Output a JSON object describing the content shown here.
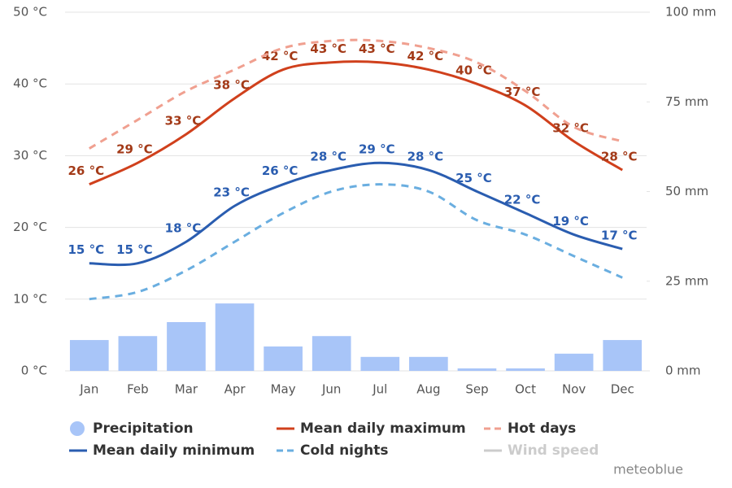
{
  "chart_data": {
    "type": "combo",
    "credit": "meteoblue",
    "categories": [
      "Jan",
      "Feb",
      "Mar",
      "Apr",
      "May",
      "Jun",
      "Jul",
      "Aug",
      "Sep",
      "Oct",
      "Nov",
      "Dec"
    ],
    "ylim": [
      0,
      50
    ],
    "yticks": [
      {
        "value": 0,
        "label": "0 °C"
      },
      {
        "value": 10,
        "label": "10 °C"
      },
      {
        "value": 20,
        "label": "20 °C"
      },
      {
        "value": 30,
        "label": "30 °C"
      },
      {
        "value": 40,
        "label": "40 °C"
      },
      {
        "value": 50,
        "label": "50 °C"
      }
    ],
    "y2lim": [
      0,
      100
    ],
    "y2ticks": [
      {
        "value": 0,
        "label": "0 mm"
      },
      {
        "value": 25,
        "label": "25 mm"
      },
      {
        "value": 50,
        "label": "50 mm"
      },
      {
        "value": 75,
        "label": "75 mm"
      },
      {
        "value": 100,
        "label": "100 mm"
      }
    ],
    "grid": true,
    "series": [
      {
        "name": "Precipitation",
        "type": "bar",
        "axis": "y2",
        "color": "#a8c5f8",
        "values": [
          8.6,
          9.7,
          13.6,
          18.8,
          6.8,
          9.7,
          3.9,
          3.9,
          0.7,
          0.7,
          4.8,
          8.6
        ]
      },
      {
        "name": "Mean daily maximum",
        "type": "line",
        "color": "#d0401c",
        "label_color": "#a33a18",
        "values": [
          26,
          29,
          33,
          38,
          42,
          43,
          43,
          42,
          40,
          37,
          32,
          28
        ],
        "value_labels": [
          "26 °C",
          "29 °C",
          "33 °C",
          "38 °C",
          "42 °C",
          "43 °C",
          "43 °C",
          "42 °C",
          "40 °C",
          "37 °C",
          "32 °C",
          "28 °C"
        ]
      },
      {
        "name": "Hot days",
        "type": "line",
        "dashed": true,
        "color": "#f0a090",
        "values": [
          31,
          35,
          39,
          42,
          45,
          46,
          46,
          45,
          43,
          39,
          34,
          32
        ]
      },
      {
        "name": "Mean daily minimum",
        "type": "line",
        "color": "#2a5db0",
        "label_color": "#2a5db0",
        "values": [
          15,
          15,
          18,
          23,
          26,
          28,
          29,
          28,
          25,
          22,
          19,
          17
        ],
        "value_labels": [
          "15 °C",
          "15 °C",
          "18 °C",
          "23 °C",
          "26 °C",
          "28 °C",
          "29 °C",
          "28 °C",
          "25 °C",
          "22 °C",
          "19 °C",
          "17 °C"
        ]
      },
      {
        "name": "Cold nights",
        "type": "line",
        "dashed": true,
        "color": "#6aaee0",
        "values": [
          10,
          11,
          14,
          18,
          22,
          25,
          26,
          25,
          21,
          19,
          16,
          13
        ]
      },
      {
        "name": "Wind speed",
        "type": "line",
        "hidden": true,
        "color": "#cccccc",
        "values": [
          null,
          null,
          null,
          null,
          null,
          null,
          null,
          null,
          null,
          null,
          null,
          null
        ]
      }
    ]
  }
}
